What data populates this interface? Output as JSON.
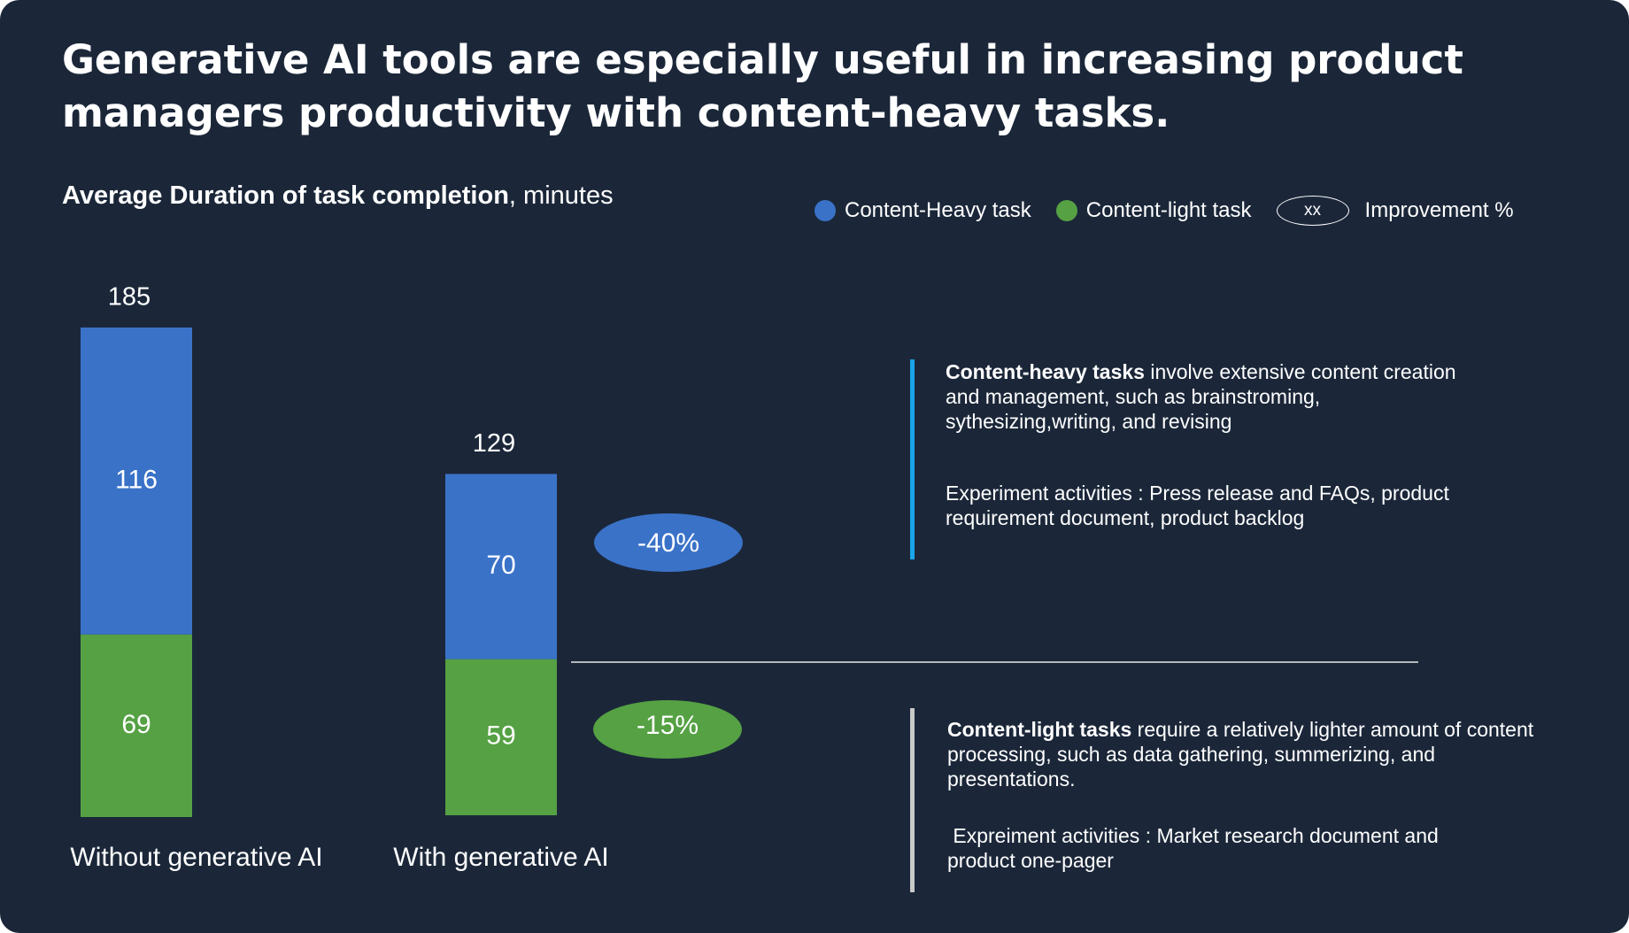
{
  "title": "Generative AI tools are especially useful in increasing product managers productivity with content-heavy tasks.",
  "subtitle": {
    "bold": "Average Duration of task completion",
    "rest": ", minutes"
  },
  "legend": {
    "heavy": "Content-Heavy task",
    "light": "Content-light task",
    "marker": "xx",
    "improvement": "Improvement %"
  },
  "colors": {
    "background": "#1b2739",
    "heavy": "#3a72c8",
    "light": "#55a143",
    "accent_line": "#1aa5e8",
    "gray_line": "#c9c9c9"
  },
  "chart_data": {
    "type": "bar",
    "stacked": true,
    "title": "Average Duration of task completion, minutes",
    "categories": [
      "Without generative AI",
      "With generative AI"
    ],
    "series": [
      {
        "name": "Content-light task",
        "values": [
          69,
          59
        ],
        "color": "#55a143"
      },
      {
        "name": "Content-Heavy task",
        "values": [
          116,
          70
        ],
        "color": "#3a72c8"
      }
    ],
    "totals": [
      185,
      129
    ],
    "improvements": [
      {
        "series": "Content-Heavy task",
        "label": "-40%"
      },
      {
        "series": "Content-light task",
        "label": "-15%"
      }
    ]
  },
  "notes": {
    "heavy": {
      "bold": "Content-heavy tasks",
      "text": " involve extensive content creation and management, such as brainstroming, sythesizing,writing, and revising",
      "activities": "Experiment activities : Press release and FAQs, product requirement document, product backlog"
    },
    "light": {
      "bold": "Content-light tasks",
      "text": " require a relatively lighter amount of content processing, such as data gathering, summerizing, and presentations.",
      "activities": " Expreiment activities : Market research document and product one-pager"
    }
  }
}
